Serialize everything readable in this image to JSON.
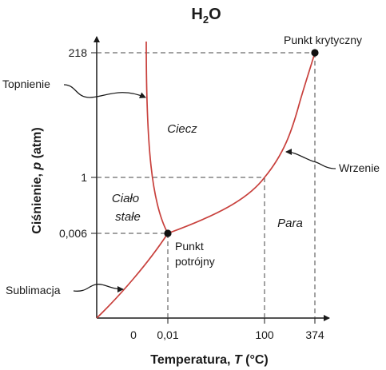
{
  "chart_data": {
    "type": "line",
    "title": {
      "main": "H",
      "sub": "2",
      "tail": "O"
    },
    "xlabel": {
      "prefix": "Temperatura, ",
      "var": "T",
      "suffix": " (°C)"
    },
    "ylabel": {
      "prefix": "Ciśnienie, ",
      "var": "p",
      "suffix": " (atm)"
    },
    "x_ticks": [
      "0",
      "0,01",
      "100",
      "374"
    ],
    "y_ticks": [
      "218",
      "1",
      "0,006"
    ],
    "regions": {
      "liquid": "Ciecz",
      "solid_line1": "Ciało",
      "solid_line2": "stałe",
      "gas": "Para"
    },
    "points": {
      "triple": {
        "line1": "Punkt",
        "line2": "potrójny",
        "temperature_c": 0.01,
        "pressure_atm": 0.006
      },
      "critical": {
        "label": "Punkt krytyczny",
        "temperature_c": 374,
        "pressure_atm": 218
      }
    },
    "curves": {
      "melting": "Topnienie",
      "boiling": "Wrzenie",
      "sublimation": "Sublimacja"
    },
    "reference_points": {
      "normal_boiling": {
        "temperature_c": 100,
        "pressure_atm": 1
      },
      "normal_melting": {
        "temperature_c": 0,
        "pressure_atm": 1
      }
    },
    "colors": {
      "curve": "#c8403c",
      "axis": "#1a1a1a",
      "guide": "#444444",
      "point": "#111111"
    }
  }
}
